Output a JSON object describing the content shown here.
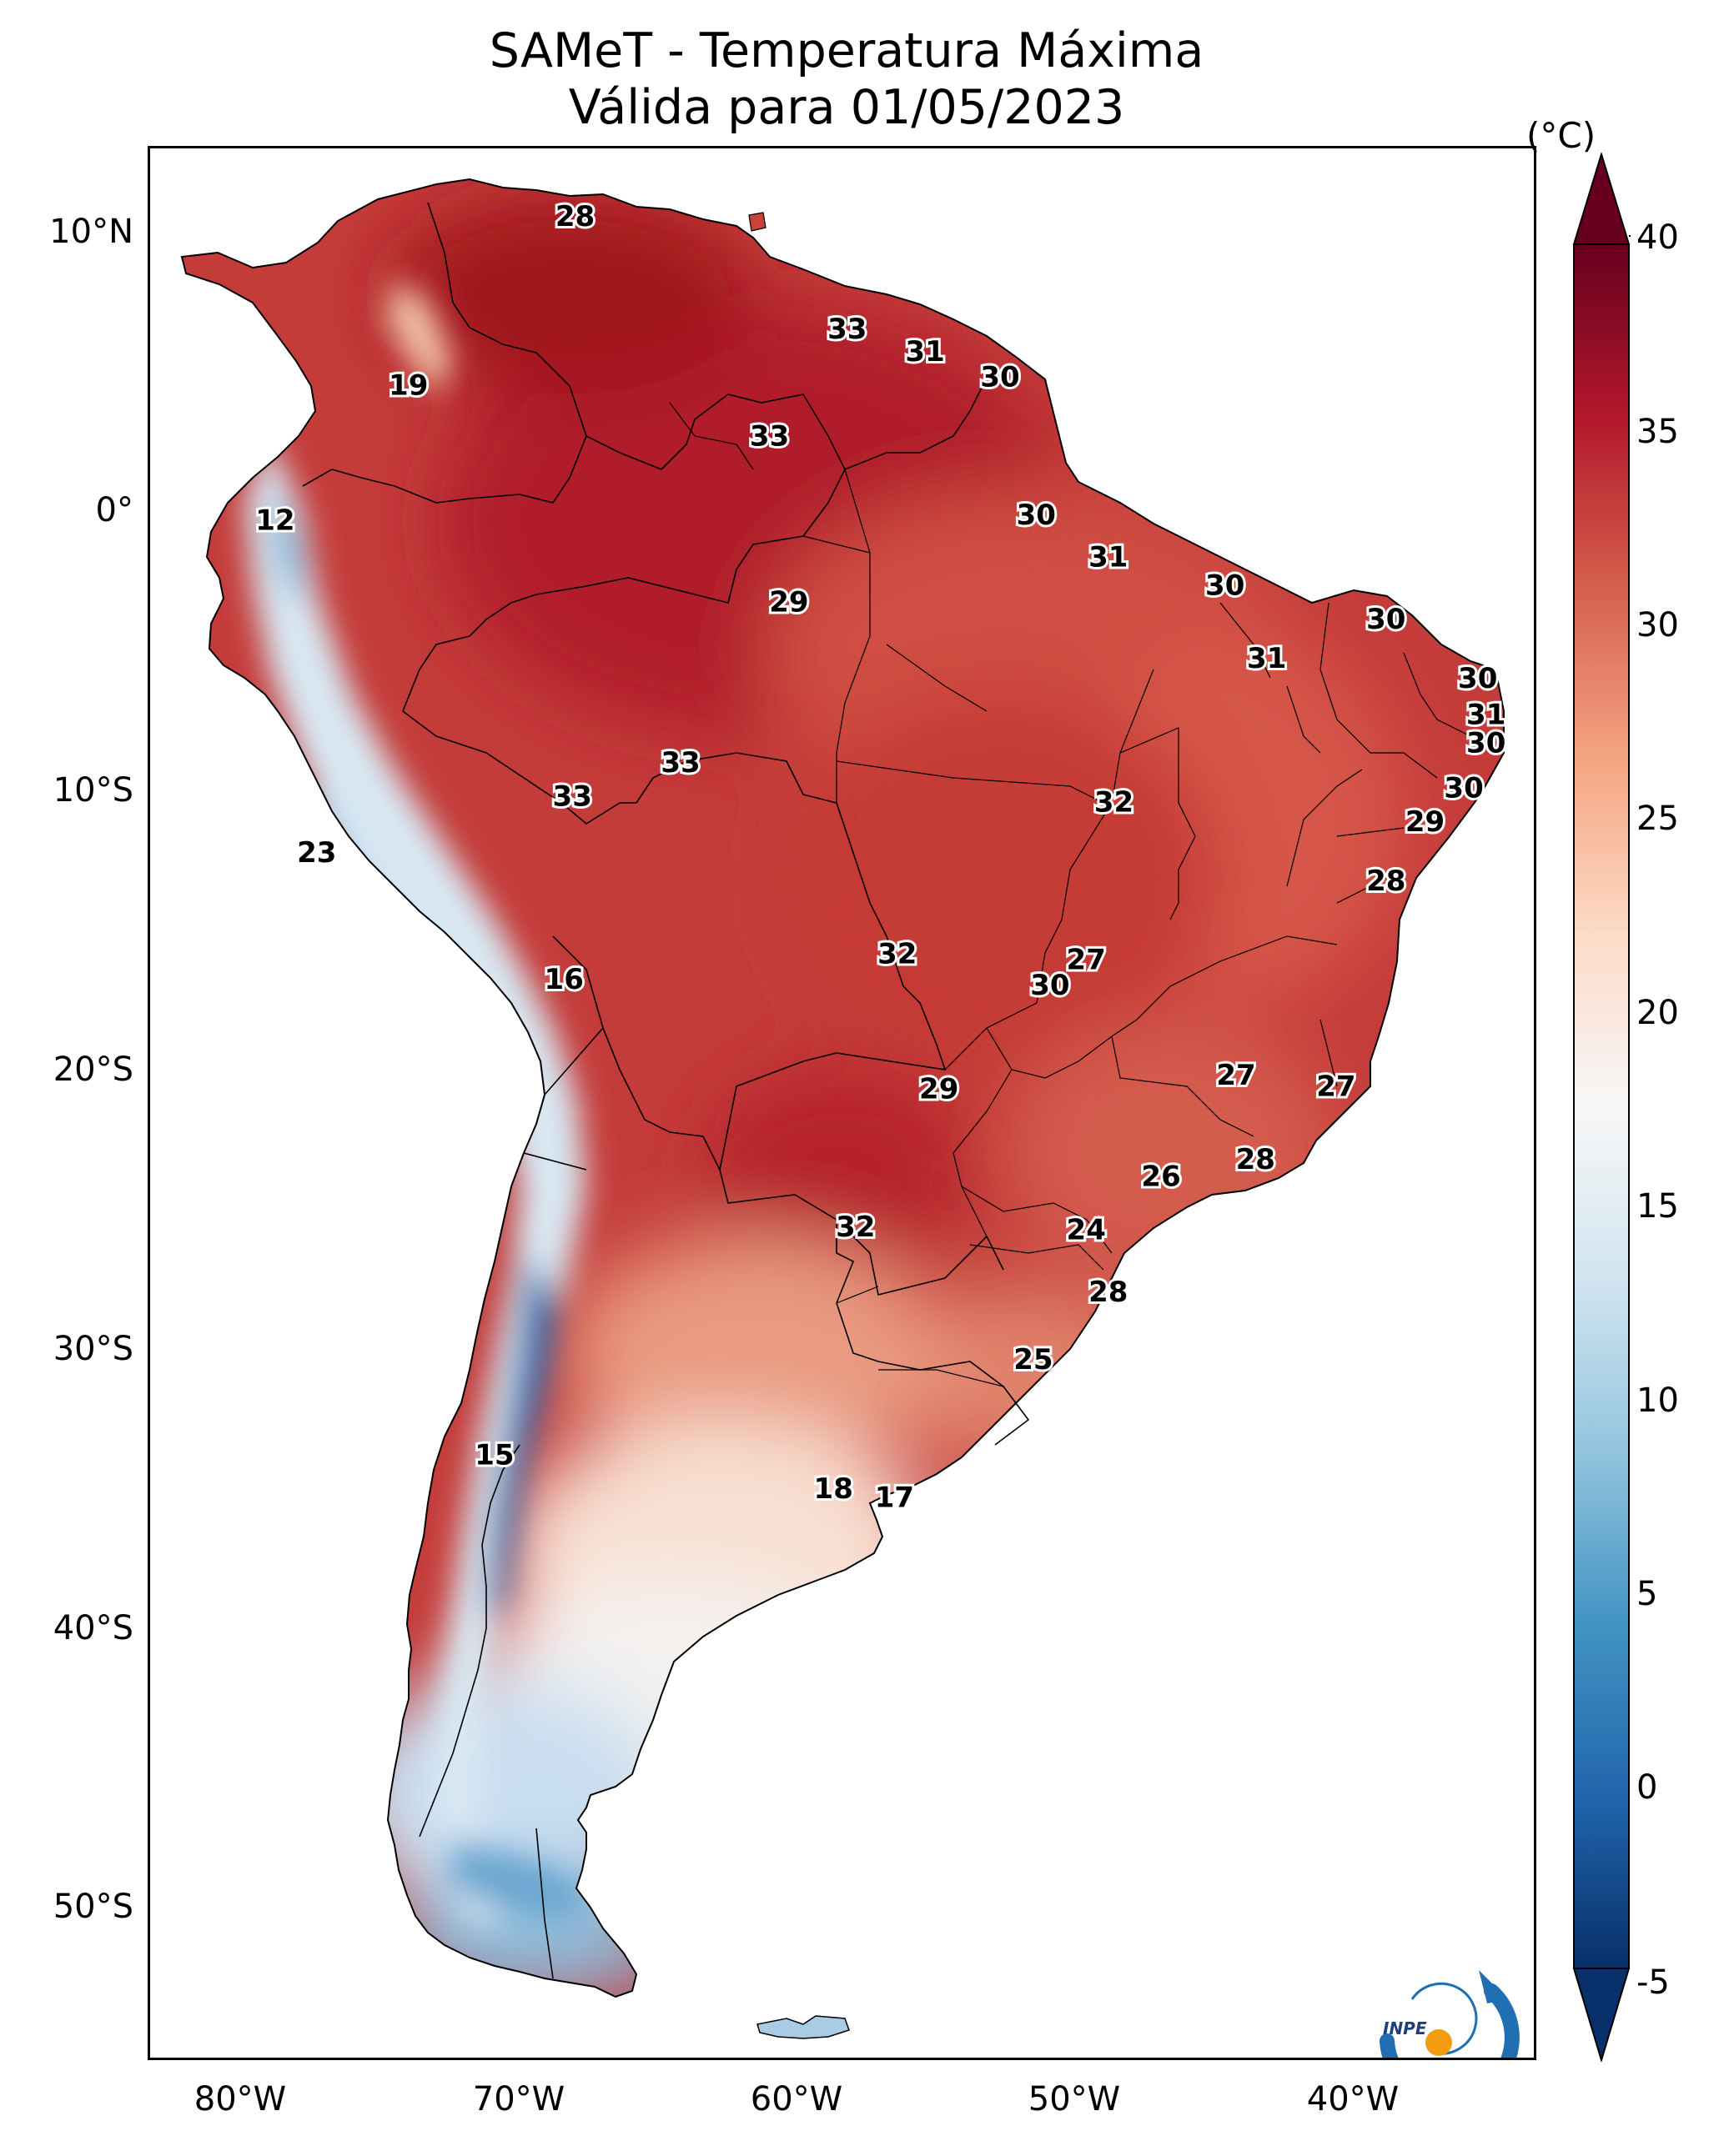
{
  "title": "SAMeT - Temperatura Máxima",
  "subtitle": "Válida para 01/05/2023",
  "colorbar": {
    "unit": "(°C)",
    "range": [
      -5,
      40
    ],
    "ticks": [
      "40",
      "35",
      "30",
      "25",
      "20",
      "15",
      "10",
      "5",
      "0",
      "-5"
    ],
    "colors": [
      "#08306b",
      "#2166ac",
      "#4393c3",
      "#92c5de",
      "#d1e5f0",
      "#f7f7f7",
      "#fddbc7",
      "#f4a582",
      "#d6604d",
      "#b2182b",
      "#67001f"
    ]
  },
  "lat_labels": [
    "10°N",
    "0°",
    "10°S",
    "20°S",
    "30°S",
    "40°S",
    "50°S"
  ],
  "lon_labels": [
    "80°W",
    "70°W",
    "60°W",
    "50°W",
    "40°W"
  ],
  "extent": {
    "lon": [
      -83,
      -33
    ],
    "lat": [
      -55,
      13
    ]
  },
  "logo": {
    "text": "INPE"
  },
  "point_values": [
    {
      "lon": -67.7,
      "lat": 10.6,
      "value": "28"
    },
    {
      "lon": -57.9,
      "lat": 6.6,
      "value": "33"
    },
    {
      "lon": -55.1,
      "lat": 5.8,
      "value": "31"
    },
    {
      "lon": -52.4,
      "lat": 4.9,
      "value": "30"
    },
    {
      "lon": -73.7,
      "lat": 4.6,
      "value": "19"
    },
    {
      "lon": -60.7,
      "lat": 2.8,
      "value": "33"
    },
    {
      "lon": -78.5,
      "lat": -0.2,
      "value": "12"
    },
    {
      "lon": -51.1,
      "lat": 0.0,
      "value": "30"
    },
    {
      "lon": -48.5,
      "lat": -1.5,
      "value": "31"
    },
    {
      "lon": -44.3,
      "lat": -2.5,
      "value": "30"
    },
    {
      "lon": -60.0,
      "lat": -3.1,
      "value": "29"
    },
    {
      "lon": -38.5,
      "lat": -3.7,
      "value": "30"
    },
    {
      "lon": -42.8,
      "lat": -5.1,
      "value": "31"
    },
    {
      "lon": -35.2,
      "lat": -5.8,
      "value": "30"
    },
    {
      "lon": -34.9,
      "lat": -7.1,
      "value": "31"
    },
    {
      "lon": -34.9,
      "lat": -8.1,
      "value": "30"
    },
    {
      "lon": -63.9,
      "lat": -8.8,
      "value": "33"
    },
    {
      "lon": -35.7,
      "lat": -9.7,
      "value": "30"
    },
    {
      "lon": -67.8,
      "lat": -10.0,
      "value": "33"
    },
    {
      "lon": -48.3,
      "lat": -10.2,
      "value": "32"
    },
    {
      "lon": -37.1,
      "lat": -10.9,
      "value": "29"
    },
    {
      "lon": -77.0,
      "lat": -12.0,
      "value": "23"
    },
    {
      "lon": -38.5,
      "lat": -13.0,
      "value": "28"
    },
    {
      "lon": -56.1,
      "lat": -15.6,
      "value": "32"
    },
    {
      "lon": -49.3,
      "lat": -15.8,
      "value": "27"
    },
    {
      "lon": -50.6,
      "lat": -16.7,
      "value": "30"
    },
    {
      "lon": -68.1,
      "lat": -16.5,
      "value": "16"
    },
    {
      "lon": -43.9,
      "lat": -19.9,
      "value": "27"
    },
    {
      "lon": -40.3,
      "lat": -20.3,
      "value": "27"
    },
    {
      "lon": -54.6,
      "lat": -20.4,
      "value": "29"
    },
    {
      "lon": -43.2,
      "lat": -22.9,
      "value": "28"
    },
    {
      "lon": -46.6,
      "lat": -23.5,
      "value": "26"
    },
    {
      "lon": -57.6,
      "lat": -25.3,
      "value": "32"
    },
    {
      "lon": -49.3,
      "lat": -25.4,
      "value": "24"
    },
    {
      "lon": -48.5,
      "lat": -27.6,
      "value": "28"
    },
    {
      "lon": -51.2,
      "lat": -30.0,
      "value": "25"
    },
    {
      "lon": -70.6,
      "lat": -33.4,
      "value": "15"
    },
    {
      "lon": -58.4,
      "lat": -34.6,
      "value": "18"
    },
    {
      "lon": -56.2,
      "lat": -34.9,
      "value": "17"
    }
  ]
}
